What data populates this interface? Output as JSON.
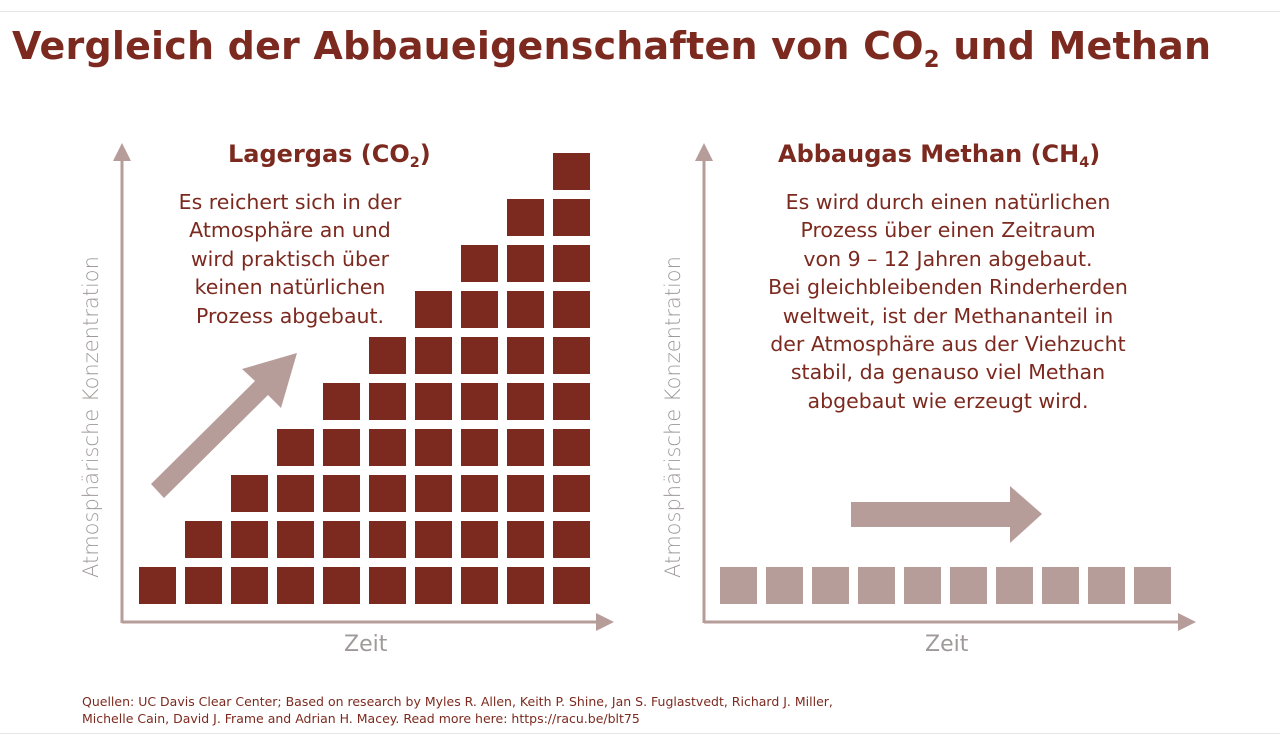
{
  "title": {
    "main": "Vergleich der Abbaueigenschaften von CO",
    "sub": "2",
    "tail": " und Methan"
  },
  "colors": {
    "co2_block": "#7c2a1f",
    "methane_block": "#b79d9a",
    "arrow": "#b79d9a",
    "axis": "#b79d9a",
    "text": "#7c2a1f",
    "axis_text": "#9f9999"
  },
  "panels": {
    "left": {
      "title_main": "Lagergas (CO",
      "title_sub": "2",
      "title_tail": ")",
      "description": "Es reichert sich in der\nAtmosphäre an und\nwird praktisch über\nkeinen natürlichen\nProzess abgebaut.",
      "y_label": "Atmosphärische Konzentration",
      "x_label": "Zeit",
      "arrow": "arrow-up-right-icon"
    },
    "right": {
      "title_main": "Abbaugas Methan (CH",
      "title_sub": "4",
      "title_tail": ")",
      "description": "Es wird durch einen natürlichen\nProzess über einen Zeitraum\nvon 9 – 12 Jahren abgebaut.\nBei gleichbleibenden Rinderherden\nweltweit, ist der Methananteil in\nder Atmosphäre aus der Viehzucht\nstabil, da genauso viel Methan\nabgebaut wie erzeugt wird.",
      "y_label": "Atmosphärische Konzentration",
      "x_label": "Zeit",
      "arrow": "arrow-right-icon"
    }
  },
  "chart_data": [
    {
      "type": "bar",
      "name": "co2",
      "values": [
        1,
        2,
        3,
        4,
        5,
        6,
        7,
        8,
        9,
        10
      ]
    },
    {
      "type": "bar",
      "name": "methane",
      "values": [
        1,
        1,
        1,
        1,
        1,
        1,
        1,
        1,
        1,
        1
      ]
    }
  ],
  "sources": "Quellen: UC Davis Clear Center; Based on research by Myles R. Allen, Keith P. Shine, Jan S. Fuglastvedt, Richard J. Miller,\nMichelle Cain, David J. Frame and Adrian H. Macey. Read more here: https://racu.be/blt75"
}
